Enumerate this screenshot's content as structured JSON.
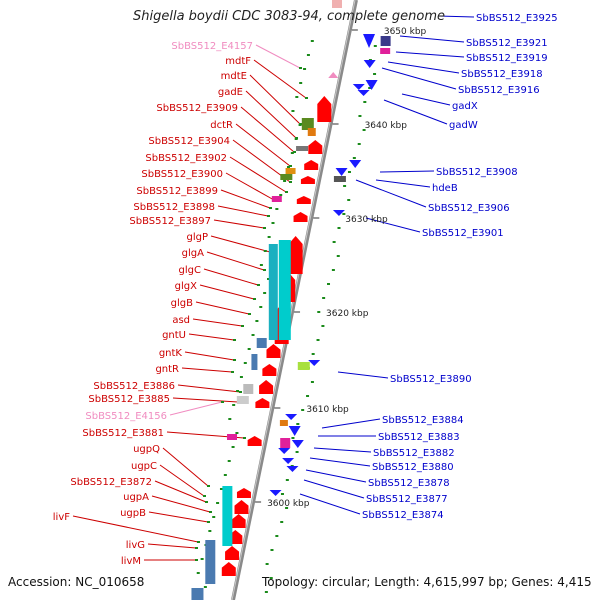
{
  "title": "Shigella boydii CDC 3083-94, complete genome",
  "footer": {
    "accession": "Accession: NC_010658",
    "topology": "Topology: circular; Length: 4,615,997 bp; Genes: 4,415"
  },
  "colors": {
    "left_label": "#cc0000",
    "left_pseudo_label": "#f08cc0",
    "right_label": "#0000cc",
    "forward_gene": "#ff0000",
    "reverse_gene": "#1a1aff",
    "operon": "#00cccc",
    "backbone": "#888888"
  },
  "ticks": [
    {
      "label": "3650 kbp",
      "kbp": 3650
    },
    {
      "label": "3640 kbp",
      "kbp": 3640
    },
    {
      "label": "3630 kbp",
      "kbp": 3630
    },
    {
      "label": "3620 kbp",
      "kbp": 3620
    },
    {
      "label": "3610 kbp",
      "kbp": 3610
    },
    {
      "label": "3600 kbp",
      "kbp": 3600
    }
  ],
  "left_labels": [
    {
      "text": "SbBS512_E4157",
      "pseudo": true
    },
    {
      "text": "mdtF"
    },
    {
      "text": "mdtE"
    },
    {
      "text": "gadE"
    },
    {
      "text": "SbBS512_E3909"
    },
    {
      "text": "dctR"
    },
    {
      "text": "SbBS512_E3904"
    },
    {
      "text": "SbBS512_E3902"
    },
    {
      "text": "SbBS512_E3900"
    },
    {
      "text": "SbBS512_E3899"
    },
    {
      "text": "SbBS512_E3898"
    },
    {
      "text": "SbBS512_E3897"
    },
    {
      "text": "glgP"
    },
    {
      "text": "glgA"
    },
    {
      "text": "glgC"
    },
    {
      "text": "glgX"
    },
    {
      "text": "glgB"
    },
    {
      "text": "asd"
    },
    {
      "text": "gntU"
    },
    {
      "text": "gntK"
    },
    {
      "text": "gntR"
    },
    {
      "text": "SbBS512_E3886"
    },
    {
      "text": "SbBS512_E3885"
    },
    {
      "text": "SbBS512_E4156",
      "pseudo": true
    },
    {
      "text": "SbBS512_E3881"
    },
    {
      "text": "ugpQ"
    },
    {
      "text": "ugpC"
    },
    {
      "text": "SbBS512_E3872"
    },
    {
      "text": "ugpA"
    },
    {
      "text": "ugpB"
    },
    {
      "text": "livF"
    },
    {
      "text": "livG"
    },
    {
      "text": "livM"
    }
  ],
  "right_labels": [
    {
      "text": "SbBS512_E3925"
    },
    {
      "text": "SbBS512_E3921"
    },
    {
      "text": "SbBS512_E3919"
    },
    {
      "text": "SbBS512_E3918"
    },
    {
      "text": "SbBS512_E3916"
    },
    {
      "text": "gadX"
    },
    {
      "text": "gadW"
    },
    {
      "text": "SbBS512_E3908"
    },
    {
      "text": "hdeB"
    },
    {
      "text": "SbBS512_E3906"
    },
    {
      "text": "SbBS512_E3901"
    },
    {
      "text": "SbBS512_E3890"
    },
    {
      "text": "SbBS512_E3884"
    },
    {
      "text": "SbBS512_E3883"
    },
    {
      "text": "SbBS512_E3882"
    },
    {
      "text": "SbBS512_E3880"
    },
    {
      "text": "SbBS512_E3878"
    },
    {
      "text": "SbBS512_E3877"
    },
    {
      "text": "SbBS512_E3874"
    }
  ]
}
